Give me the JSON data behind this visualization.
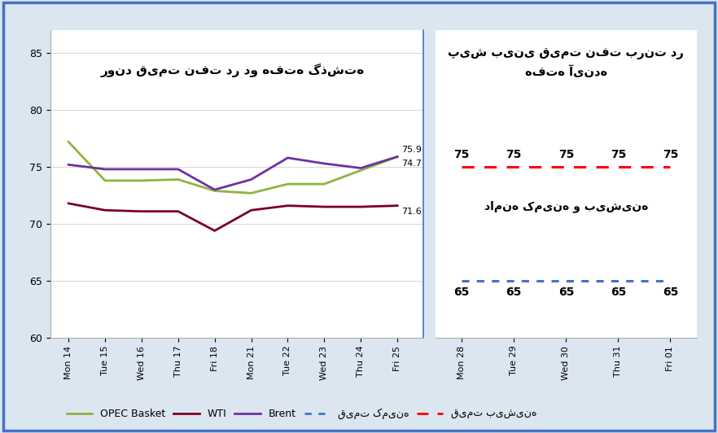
{
  "left_x_labels": [
    "Mon 14",
    "Tue 15",
    "Wed 16",
    "Thu 17",
    "Fri 18",
    "Mon 21",
    "Tue 22",
    "Wed 23",
    "Thu 24",
    "Fri 25"
  ],
  "right_x_labels": [
    "Mon 28",
    "Tue 29",
    "Wed 30",
    "Thu 31",
    "Fri 01"
  ],
  "opec_values": [
    77.2,
    73.8,
    73.8,
    73.9,
    72.9,
    72.7,
    73.5,
    73.5,
    74.7,
    75.9
  ],
  "wti_values": [
    71.8,
    71.2,
    71.1,
    71.1,
    69.4,
    71.2,
    71.6,
    71.5,
    71.5,
    71.6
  ],
  "brent_values": [
    75.2,
    74.8,
    74.8,
    74.8,
    73.0,
    73.9,
    75.8,
    75.3,
    74.9,
    75.9
  ],
  "forecast_max": [
    75,
    75,
    75,
    75,
    75
  ],
  "forecast_min": [
    65,
    65,
    65,
    65,
    65
  ],
  "opec_color": "#8db53d",
  "wti_color": "#7b0021",
  "brent_color": "#7030a0",
  "forecast_max_color": "#ff0000",
  "forecast_min_color": "#4472c4",
  "divider_color": "#4472c4",
  "ylim": [
    60,
    87
  ],
  "yticks": [
    60,
    65,
    70,
    75,
    80,
    85
  ],
  "left_title": "روند قیمت نفت در دو هفته گذشته",
  "right_title": "پیش بینی قیمت نفت برنت در\nهفته آینده",
  "range_label": "دامنه کمینه و بیشینه",
  "legend_opec": "OPEC Basket",
  "legend_wti": "WTI",
  "legend_brent": "Brent",
  "legend_min_label": "قیمت کمینه",
  "legend_max_label": "قیمت بیشینه",
  "background_color": "#ffffff",
  "border_color": "#4472c4",
  "fig_bg_color": "#dce6f1",
  "annotation_75_9": "75.9",
  "annotation_74_7": "74.7",
  "annotation_71_6": "71.6"
}
